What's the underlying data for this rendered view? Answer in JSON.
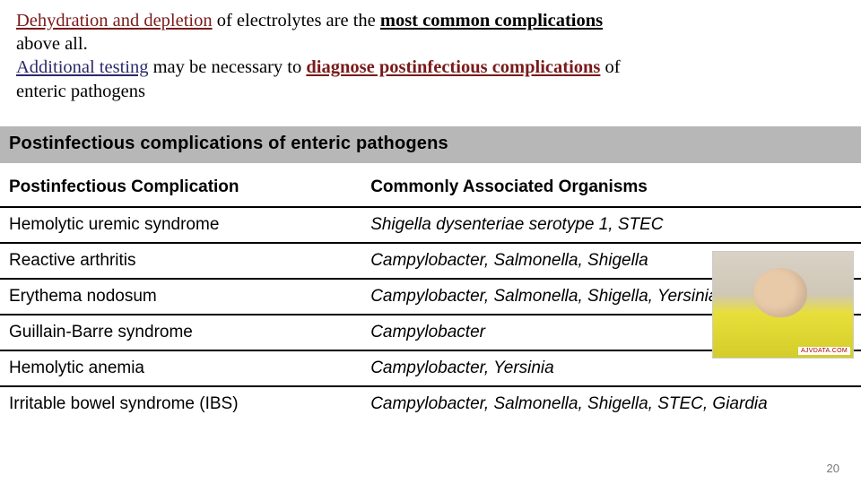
{
  "intro": {
    "part1_underlined": "Dehydration and depletion",
    "part2_plain": " of electrolytes are the ",
    "part3_bold_under": "most common complications",
    "part4_plain_line2": "above all.",
    "part5_blue_under": "Additional testing",
    "part6_plain": " may be necessary to ",
    "part7_red_bold_under": "diagnose postinfectious complications",
    "part8_plain": " of",
    "part9_line4": "enteric pathogens"
  },
  "table": {
    "title": "Postinfectious complications of enteric pathogens",
    "header_col1": "Postinfectious Complication",
    "header_col2": "Commonly Associated Organisms",
    "rows": [
      {
        "c1": "Hemolytic uremic syndrome",
        "c2": "Shigella dysenteriae serotype 1, STEC"
      },
      {
        "c1": "Reactive arthritis",
        "c2": "Campylobacter, Salmonella, Shigella"
      },
      {
        "c1": "Erythema nodosum",
        "c2": "Campylobacter, Salmonella, Shigella, Yersinia"
      },
      {
        "c1": "Guillain-Barre syndrome",
        "c2": "Campylobacter"
      },
      {
        "c1": "Hemolytic anemia",
        "c2": "Campylobacter, Yersinia"
      },
      {
        "c1": "Irritable bowel syndrome (IBS)",
        "c2": "Campylobacter, Salmonella, Shigella, STEC, Giardia"
      }
    ]
  },
  "side_image_tag": "AJVDATA.COM",
  "page_number": "20",
  "colors": {
    "darkred": "#7a1a1a",
    "darkblue": "#2a2a6a",
    "title_bar_bg": "#b7b7b7",
    "pagenum": "#777777"
  }
}
